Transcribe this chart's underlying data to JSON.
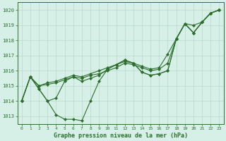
{
  "title": "Graphe pression niveau de la mer (hPa)",
  "bg_color": "#d6f0e8",
  "grid_color": "#b8d8cc",
  "line_color": "#2d6e2d",
  "xlim": [
    -0.5,
    23.5
  ],
  "ylim": [
    1012.5,
    1020.5
  ],
  "yticks": [
    1013,
    1014,
    1015,
    1016,
    1017,
    1018,
    1019,
    1020
  ],
  "xticks": [
    0,
    1,
    2,
    3,
    4,
    5,
    6,
    7,
    8,
    9,
    10,
    11,
    12,
    13,
    14,
    15,
    16,
    17,
    18,
    19,
    20,
    21,
    22,
    23
  ],
  "series": [
    [
      1014.0,
      1015.6,
      1014.8,
      1014.0,
      1013.1,
      1012.8,
      1012.8,
      1012.7,
      1014.0,
      1015.3,
      1016.1,
      1016.4,
      1016.7,
      1016.5,
      1015.9,
      1015.7,
      1015.8,
      1016.0,
      1018.1,
      1019.1,
      1018.5,
      1019.2,
      1019.8,
      1020.0
    ],
    [
      1014.0,
      1015.6,
      1015.0,
      1015.1,
      1015.2,
      1015.4,
      1015.6,
      1015.5,
      1015.7,
      1015.8,
      1016.0,
      1016.2,
      1016.5,
      1016.4,
      1016.2,
      1016.0,
      1016.1,
      1016.5,
      1018.1,
      1019.1,
      1018.5,
      1019.2,
      1019.8,
      1020.0
    ],
    [
      1014.0,
      1015.6,
      1015.0,
      1015.2,
      1015.3,
      1015.5,
      1015.7,
      1015.6,
      1015.8,
      1016.0,
      1016.2,
      1016.4,
      1016.6,
      1016.5,
      1016.3,
      1016.1,
      1016.2,
      1017.1,
      1018.1,
      1019.1,
      1019.0,
      1019.2,
      1019.8,
      1020.0
    ],
    [
      1014.0,
      1015.6,
      1014.8,
      1014.0,
      1014.2,
      1015.3,
      1015.6,
      1015.3,
      1015.5,
      1015.7,
      1016.1,
      1016.4,
      1016.7,
      1016.5,
      1015.9,
      1015.7,
      1015.8,
      1016.0,
      1018.1,
      1019.1,
      1018.5,
      1019.2,
      1019.8,
      1020.0
    ]
  ]
}
